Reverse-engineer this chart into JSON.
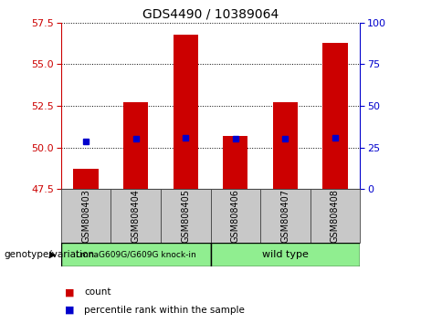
{
  "title": "GDS4490 / 10389064",
  "samples": [
    "GSM808403",
    "GSM808404",
    "GSM808405",
    "GSM808406",
    "GSM808407",
    "GSM808408"
  ],
  "bar_heights": [
    48.7,
    52.7,
    56.8,
    50.7,
    52.7,
    56.3
  ],
  "percentile_values": [
    50.35,
    50.5,
    50.6,
    50.5,
    50.5,
    50.6
  ],
  "ymin": 47.5,
  "ymax": 57.5,
  "yticks_left": [
    47.5,
    50.0,
    52.5,
    55.0,
    57.5
  ],
  "yticks_right": [
    0,
    25,
    50,
    75,
    100
  ],
  "bar_color": "#cc0000",
  "percentile_color": "#0000cc",
  "bar_width": 0.5,
  "group1_label": "LmnaG609G/G609G knock-in",
  "group2_label": "wild type",
  "group_color": "#90ee90",
  "genotype_label": "genotype/variation",
  "legend_count": "count",
  "legend_percentile": "percentile rank within the sample",
  "left_axis_color": "#cc0000",
  "right_axis_color": "#0000cc",
  "bg_color_xlabel": "#c8c8c8",
  "title_fontsize": 10
}
